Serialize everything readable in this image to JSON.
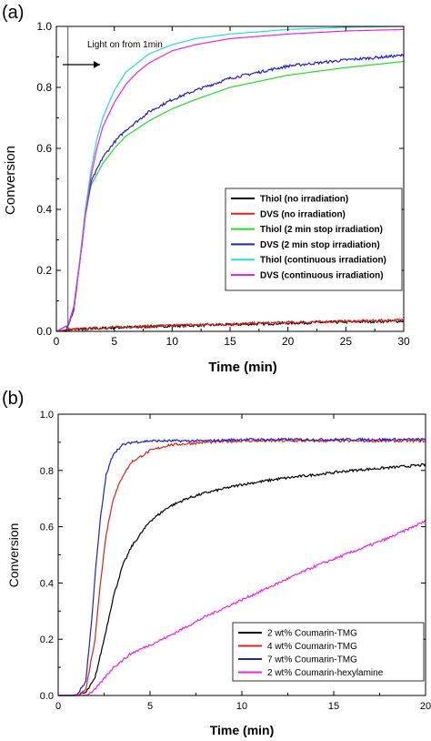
{
  "chart_data": [
    {
      "type": "line",
      "panel_label": "(a)",
      "xlabel": "Time (min)",
      "ylabel": "Conversion",
      "xlim": [
        0,
        30
      ],
      "ylim": [
        0,
        1.0
      ],
      "xticks": [
        0,
        5,
        10,
        15,
        20,
        25,
        30
      ],
      "yticks": [
        0.0,
        0.2,
        0.4,
        0.6,
        0.8,
        1.0
      ],
      "grid": false,
      "legend_position": "lower-right",
      "annotation": {
        "text": "Light on from 1min",
        "x": 1
      },
      "series": [
        {
          "name": "Thiol (no irradiation)",
          "color": "#000000",
          "noisy": true,
          "x": [
            0,
            1,
            5,
            10,
            15,
            20,
            25,
            30
          ],
          "y": [
            0.0,
            0.005,
            0.012,
            0.018,
            0.022,
            0.027,
            0.031,
            0.034
          ]
        },
        {
          "name": "DVS (no irradiation)",
          "color": "#e0201a",
          "noisy": true,
          "x": [
            0,
            1,
            5,
            10,
            15,
            20,
            25,
            30
          ],
          "y": [
            0.0,
            0.006,
            0.013,
            0.019,
            0.024,
            0.029,
            0.033,
            0.037
          ]
        },
        {
          "name": "Thiol (2 min stop irradiation)",
          "color": "#22dd22",
          "noisy": false,
          "x": [
            0,
            1,
            1.5,
            2,
            2.5,
            3,
            4,
            5,
            6,
            8,
            10,
            12,
            15,
            20,
            25,
            30
          ],
          "y": [
            0.0,
            0.02,
            0.07,
            0.22,
            0.38,
            0.48,
            0.55,
            0.6,
            0.64,
            0.69,
            0.73,
            0.76,
            0.8,
            0.84,
            0.865,
            0.885
          ]
        },
        {
          "name": "DVS (2 min stop irradiation)",
          "color": "#2020cc",
          "noisy": true,
          "x": [
            0,
            1,
            1.5,
            2,
            2.5,
            3,
            4,
            5,
            6,
            8,
            10,
            12,
            15,
            20,
            25,
            30
          ],
          "y": [
            0.0,
            0.02,
            0.07,
            0.22,
            0.38,
            0.49,
            0.57,
            0.62,
            0.66,
            0.72,
            0.76,
            0.79,
            0.83,
            0.87,
            0.89,
            0.905
          ]
        },
        {
          "name": "Thiol (continuous irradiation)",
          "color": "#22dddd",
          "noisy": false,
          "x": [
            0,
            1,
            1.5,
            2,
            2.5,
            3,
            3.5,
            4,
            5,
            6,
            7,
            8,
            10,
            12,
            15,
            20,
            25,
            30
          ],
          "y": [
            0.0,
            0.02,
            0.08,
            0.23,
            0.4,
            0.53,
            0.63,
            0.7,
            0.79,
            0.85,
            0.88,
            0.91,
            0.94,
            0.96,
            0.975,
            0.99,
            0.997,
            1.0
          ]
        },
        {
          "name": "DVS (continuous irradiation)",
          "color": "#ee22ee",
          "noisy": false,
          "x": [
            0,
            1,
            1.5,
            2,
            2.5,
            3,
            3.5,
            4,
            5,
            6,
            7,
            8,
            10,
            12,
            15,
            20,
            25,
            30
          ],
          "y": [
            0.0,
            0.02,
            0.08,
            0.22,
            0.38,
            0.51,
            0.6,
            0.67,
            0.75,
            0.81,
            0.85,
            0.88,
            0.92,
            0.94,
            0.96,
            0.975,
            0.985,
            0.99
          ]
        }
      ]
    },
    {
      "type": "line",
      "panel_label": "(b)",
      "xlabel": "Time (min)",
      "ylabel": "Conversion",
      "xlim": [
        0,
        20
      ],
      "ylim": [
        0,
        1.0
      ],
      "xticks": [
        0,
        5,
        10,
        15,
        20
      ],
      "yticks": [
        0.0,
        0.2,
        0.4,
        0.6,
        0.8,
        1.0
      ],
      "grid": false,
      "legend_position": "lower-right",
      "series": [
        {
          "name": "2 wt% Coumarin-TMG",
          "color": "#000000",
          "noisy": true,
          "x": [
            0,
            1,
            1.5,
            2,
            2.5,
            3,
            3.5,
            4,
            5,
            6,
            7,
            8,
            10,
            12,
            14,
            16,
            18,
            20
          ],
          "y": [
            0.0,
            0.0,
            0.01,
            0.06,
            0.2,
            0.35,
            0.46,
            0.53,
            0.62,
            0.67,
            0.7,
            0.72,
            0.75,
            0.77,
            0.785,
            0.8,
            0.81,
            0.82
          ]
        },
        {
          "name": "4 wt% Coumarin-TMG",
          "color": "#e0201a",
          "noisy": true,
          "x": [
            0,
            1,
            1.5,
            2,
            2.3,
            2.6,
            3,
            3.5,
            4,
            5,
            6,
            7,
            8,
            10,
            15,
            20
          ],
          "y": [
            0.0,
            0.0,
            0.02,
            0.2,
            0.4,
            0.57,
            0.7,
            0.78,
            0.83,
            0.87,
            0.89,
            0.895,
            0.9,
            0.905,
            0.905,
            0.905
          ]
        },
        {
          "name": "7 wt% Coumarin-TMG",
          "color": "#2020cc",
          "noisy": true,
          "x": [
            0,
            1,
            1.5,
            1.8,
            2,
            2.3,
            2.6,
            3,
            3.5,
            4,
            5,
            6,
            8,
            10,
            15,
            20
          ],
          "y": [
            0.0,
            0.0,
            0.05,
            0.25,
            0.42,
            0.63,
            0.78,
            0.86,
            0.89,
            0.9,
            0.905,
            0.905,
            0.905,
            0.91,
            0.91,
            0.91
          ]
        },
        {
          "name": "2 wt% Coumarin-hexylamine",
          "color": "#ee22ee",
          "noisy": true,
          "x": [
            0,
            1,
            1.5,
            2,
            2.5,
            3,
            4,
            5,
            6,
            8,
            10,
            12,
            14,
            16,
            18,
            20
          ],
          "y": [
            0.0,
            0.0,
            0.0,
            0.02,
            0.06,
            0.1,
            0.15,
            0.18,
            0.21,
            0.28,
            0.34,
            0.4,
            0.46,
            0.51,
            0.56,
            0.62
          ]
        }
      ]
    }
  ]
}
